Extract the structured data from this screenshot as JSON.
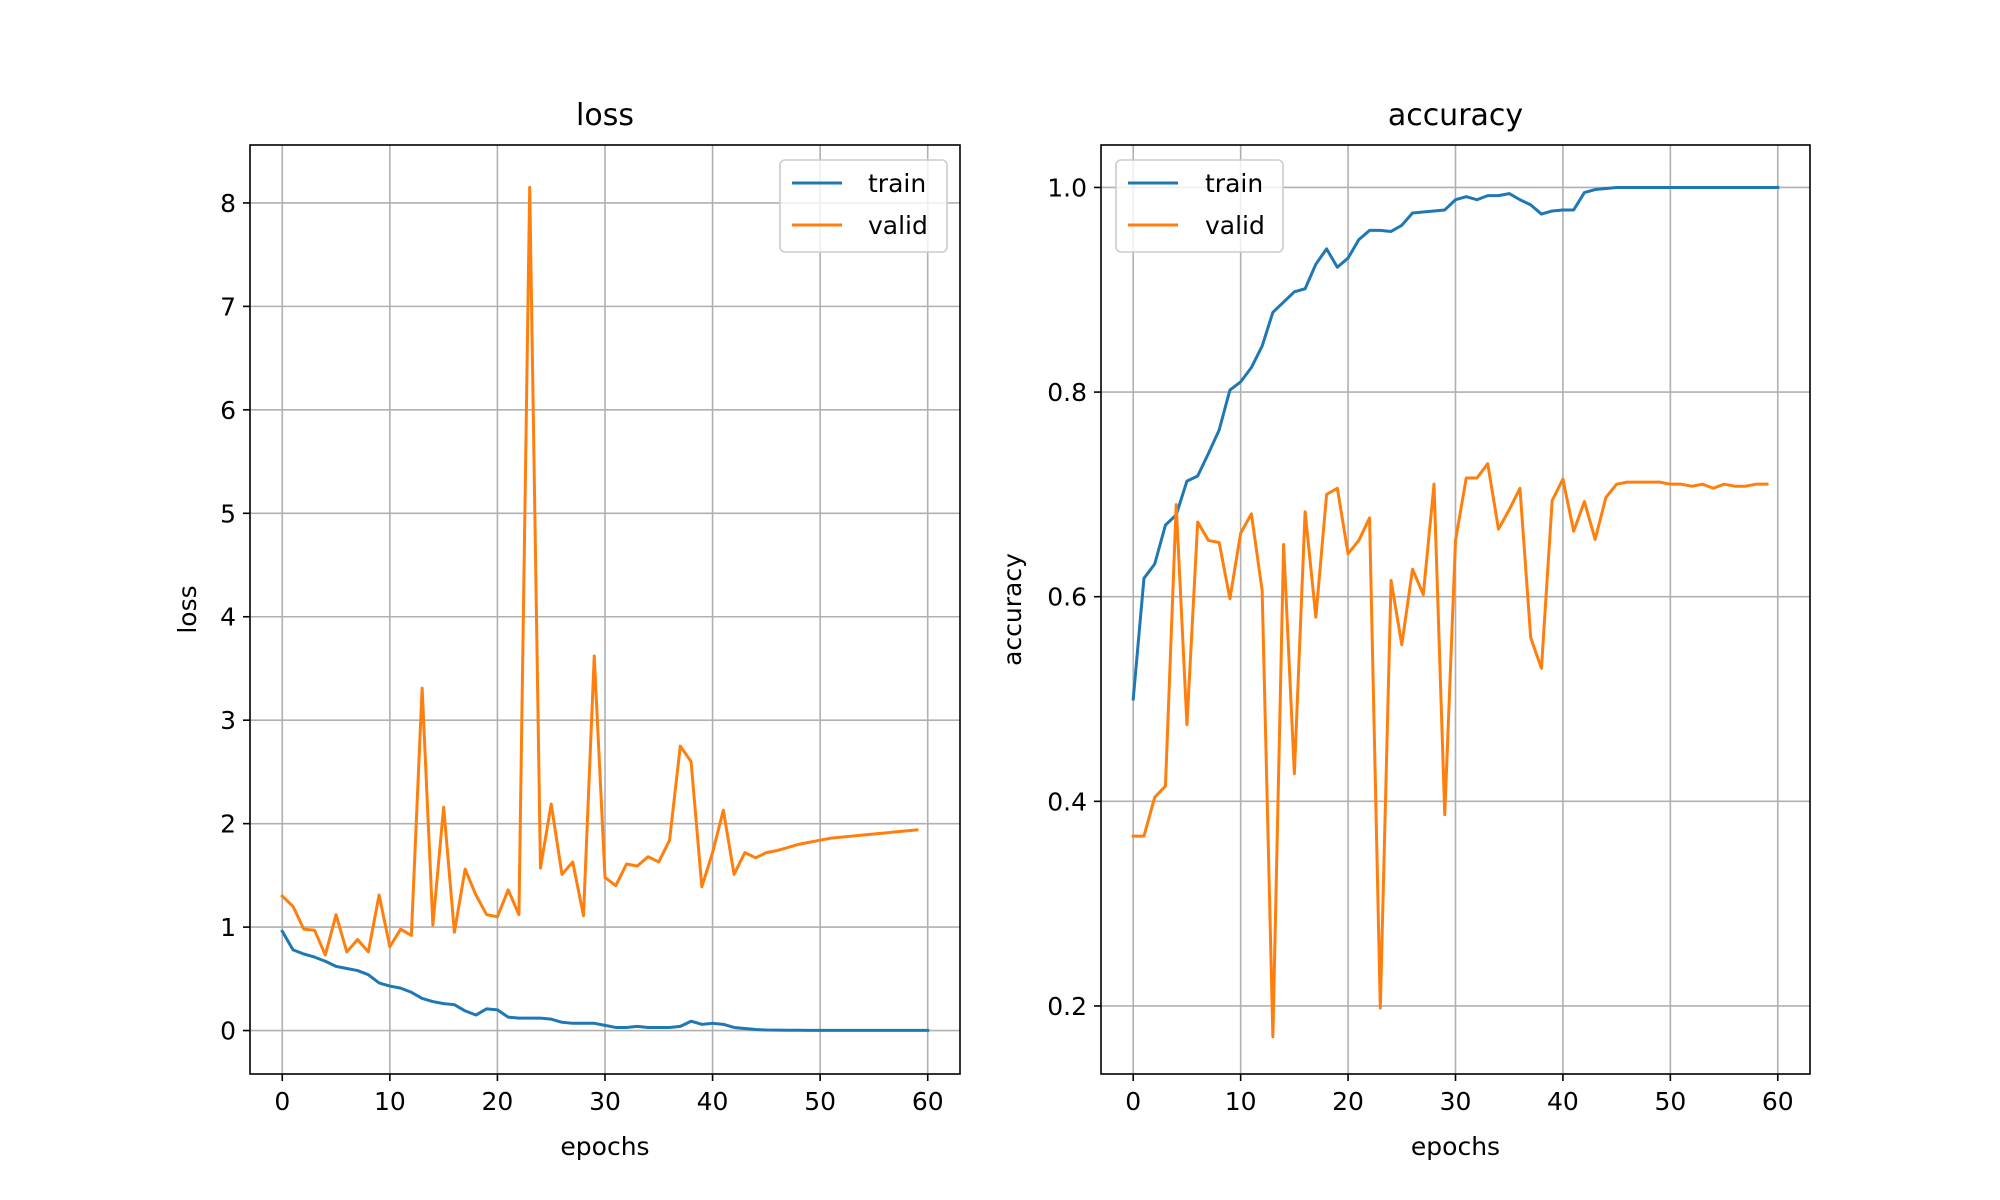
{
  "chart_data": [
    {
      "type": "line",
      "title": "loss",
      "xlabel": "epochs",
      "ylabel": "loss",
      "xlim": [
        -3,
        63
      ],
      "ylim": [
        -0.42,
        8.56
      ],
      "xticks": [
        0,
        10,
        20,
        30,
        40,
        50,
        60
      ],
      "yticks": [
        0,
        1,
        2,
        3,
        4,
        5,
        6,
        7,
        8
      ],
      "grid": true,
      "legend_position": "top-right",
      "series": [
        {
          "name": "train",
          "color": "#1f77b4",
          "x": [
            0,
            1,
            2,
            3,
            4,
            5,
            6,
            7,
            8,
            9,
            10,
            11,
            12,
            13,
            14,
            15,
            16,
            17,
            18,
            19,
            20,
            21,
            22,
            23,
            24,
            25,
            26,
            27,
            28,
            29,
            30,
            31,
            32,
            33,
            34,
            35,
            36,
            37,
            38,
            39,
            40,
            41,
            42,
            43,
            44,
            45,
            46,
            47,
            48,
            49,
            50,
            51,
            52,
            53,
            54,
            55,
            56,
            57,
            58,
            59,
            60
          ],
          "values": [
            0.96,
            0.78,
            0.74,
            0.71,
            0.67,
            0.62,
            0.6,
            0.58,
            0.54,
            0.46,
            0.43,
            0.41,
            0.37,
            0.31,
            0.28,
            0.26,
            0.25,
            0.19,
            0.15,
            0.21,
            0.2,
            0.13,
            0.12,
            0.12,
            0.12,
            0.11,
            0.08,
            0.07,
            0.07,
            0.07,
            0.05,
            0.03,
            0.03,
            0.04,
            0.03,
            0.03,
            0.03,
            0.04,
            0.09,
            0.06,
            0.07,
            0.06,
            0.03,
            0.02,
            0.01,
            0.005,
            0.004,
            0.003,
            0.003,
            0.002,
            0.002,
            0.002,
            0.002,
            0.002,
            0.002,
            0.002,
            0.002,
            0.002,
            0.002,
            0.002,
            0.002
          ]
        },
        {
          "name": "valid",
          "color": "#ff7f0e",
          "x": [
            0,
            1,
            2,
            3,
            4,
            5,
            6,
            7,
            8,
            9,
            10,
            11,
            12,
            13,
            14,
            15,
            16,
            17,
            18,
            19,
            20,
            21,
            22,
            23,
            24,
            25,
            26,
            27,
            28,
            29,
            30,
            31,
            32,
            33,
            34,
            35,
            36,
            37,
            38,
            39,
            40,
            41,
            42,
            43,
            44,
            45,
            46,
            47,
            48,
            49,
            50,
            51,
            52,
            53,
            54,
            55,
            56,
            57,
            58,
            59
          ],
          "values": [
            1.3,
            1.2,
            0.98,
            0.97,
            0.73,
            1.12,
            0.76,
            0.88,
            0.76,
            1.31,
            0.81,
            0.98,
            0.92,
            3.31,
            1.02,
            2.16,
            0.95,
            1.56,
            1.31,
            1.12,
            1.1,
            1.36,
            1.12,
            8.15,
            1.57,
            2.19,
            1.51,
            1.63,
            1.11,
            3.62,
            1.48,
            1.4,
            1.61,
            1.59,
            1.68,
            1.63,
            1.84,
            2.75,
            2.6,
            1.39,
            1.72,
            2.13,
            1.51,
            1.72,
            1.67,
            1.72,
            1.74,
            1.77,
            1.8,
            1.82,
            1.84,
            1.86,
            1.87,
            1.88,
            1.89,
            1.9,
            1.91,
            1.92,
            1.93,
            1.94
          ]
        }
      ]
    },
    {
      "type": "line",
      "title": "accuracy",
      "xlabel": "epochs",
      "ylabel": "accuracy",
      "xlim": [
        -3,
        63
      ],
      "ylim": [
        0.1335,
        1.0415
      ],
      "xticks": [
        0,
        10,
        20,
        30,
        40,
        50,
        60
      ],
      "yticks": [
        0.2,
        0.4,
        0.6,
        0.8,
        1.0
      ],
      "grid": true,
      "legend_position": "top-left",
      "series": [
        {
          "name": "train",
          "color": "#1f77b4",
          "x": [
            0,
            1,
            2,
            3,
            4,
            5,
            6,
            7,
            8,
            9,
            10,
            11,
            12,
            13,
            14,
            15,
            16,
            17,
            18,
            19,
            20,
            21,
            22,
            23,
            24,
            25,
            26,
            27,
            28,
            29,
            30,
            31,
            32,
            33,
            34,
            35,
            36,
            37,
            38,
            39,
            40,
            41,
            42,
            43,
            44,
            45,
            46,
            47,
            48,
            49,
            50,
            51,
            52,
            53,
            54,
            55,
            56,
            57,
            58,
            59,
            60
          ],
          "values": [
            0.5,
            0.618,
            0.632,
            0.67,
            0.68,
            0.713,
            0.718,
            0.74,
            0.763,
            0.802,
            0.81,
            0.824,
            0.845,
            0.878,
            0.888,
            0.898,
            0.901,
            0.925,
            0.94,
            0.922,
            0.931,
            0.949,
            0.958,
            0.958,
            0.957,
            0.963,
            0.975,
            0.976,
            0.977,
            0.978,
            0.988,
            0.991,
            0.988,
            0.992,
            0.992,
            0.994,
            0.988,
            0.983,
            0.974,
            0.977,
            0.978,
            0.978,
            0.995,
            0.998,
            0.999,
            1.0,
            1.0,
            1.0,
            1.0,
            1.0,
            1.0,
            1.0,
            1.0,
            1.0,
            1.0,
            1.0,
            1.0,
            1.0,
            1.0,
            1.0,
            1.0
          ]
        },
        {
          "name": "valid",
          "color": "#ff7f0e",
          "x": [
            0,
            1,
            2,
            3,
            4,
            5,
            6,
            7,
            8,
            9,
            10,
            11,
            12,
            13,
            14,
            15,
            16,
            17,
            18,
            19,
            20,
            21,
            22,
            23,
            24,
            25,
            26,
            27,
            28,
            29,
            30,
            31,
            32,
            33,
            34,
            35,
            36,
            37,
            38,
            39,
            40,
            41,
            42,
            43,
            44,
            45,
            46,
            47,
            48,
            49,
            50,
            51,
            52,
            53,
            54,
            55,
            56,
            57,
            58,
            59
          ],
          "values": [
            0.366,
            0.366,
            0.404,
            0.415,
            0.69,
            0.475,
            0.673,
            0.655,
            0.653,
            0.598,
            0.662,
            0.681,
            0.606,
            0.17,
            0.651,
            0.427,
            0.683,
            0.58,
            0.7,
            0.706,
            0.642,
            0.655,
            0.677,
            0.198,
            0.616,
            0.553,
            0.627,
            0.602,
            0.71,
            0.387,
            0.655,
            0.716,
            0.716,
            0.73,
            0.666,
            0.685,
            0.706,
            0.56,
            0.53,
            0.694,
            0.715,
            0.664,
            0.693,
            0.656,
            0.697,
            0.71,
            0.712,
            0.712,
            0.712,
            0.712,
            0.71,
            0.71,
            0.708,
            0.71,
            0.706,
            0.71,
            0.708,
            0.708,
            0.71,
            0.71
          ]
        }
      ]
    }
  ]
}
